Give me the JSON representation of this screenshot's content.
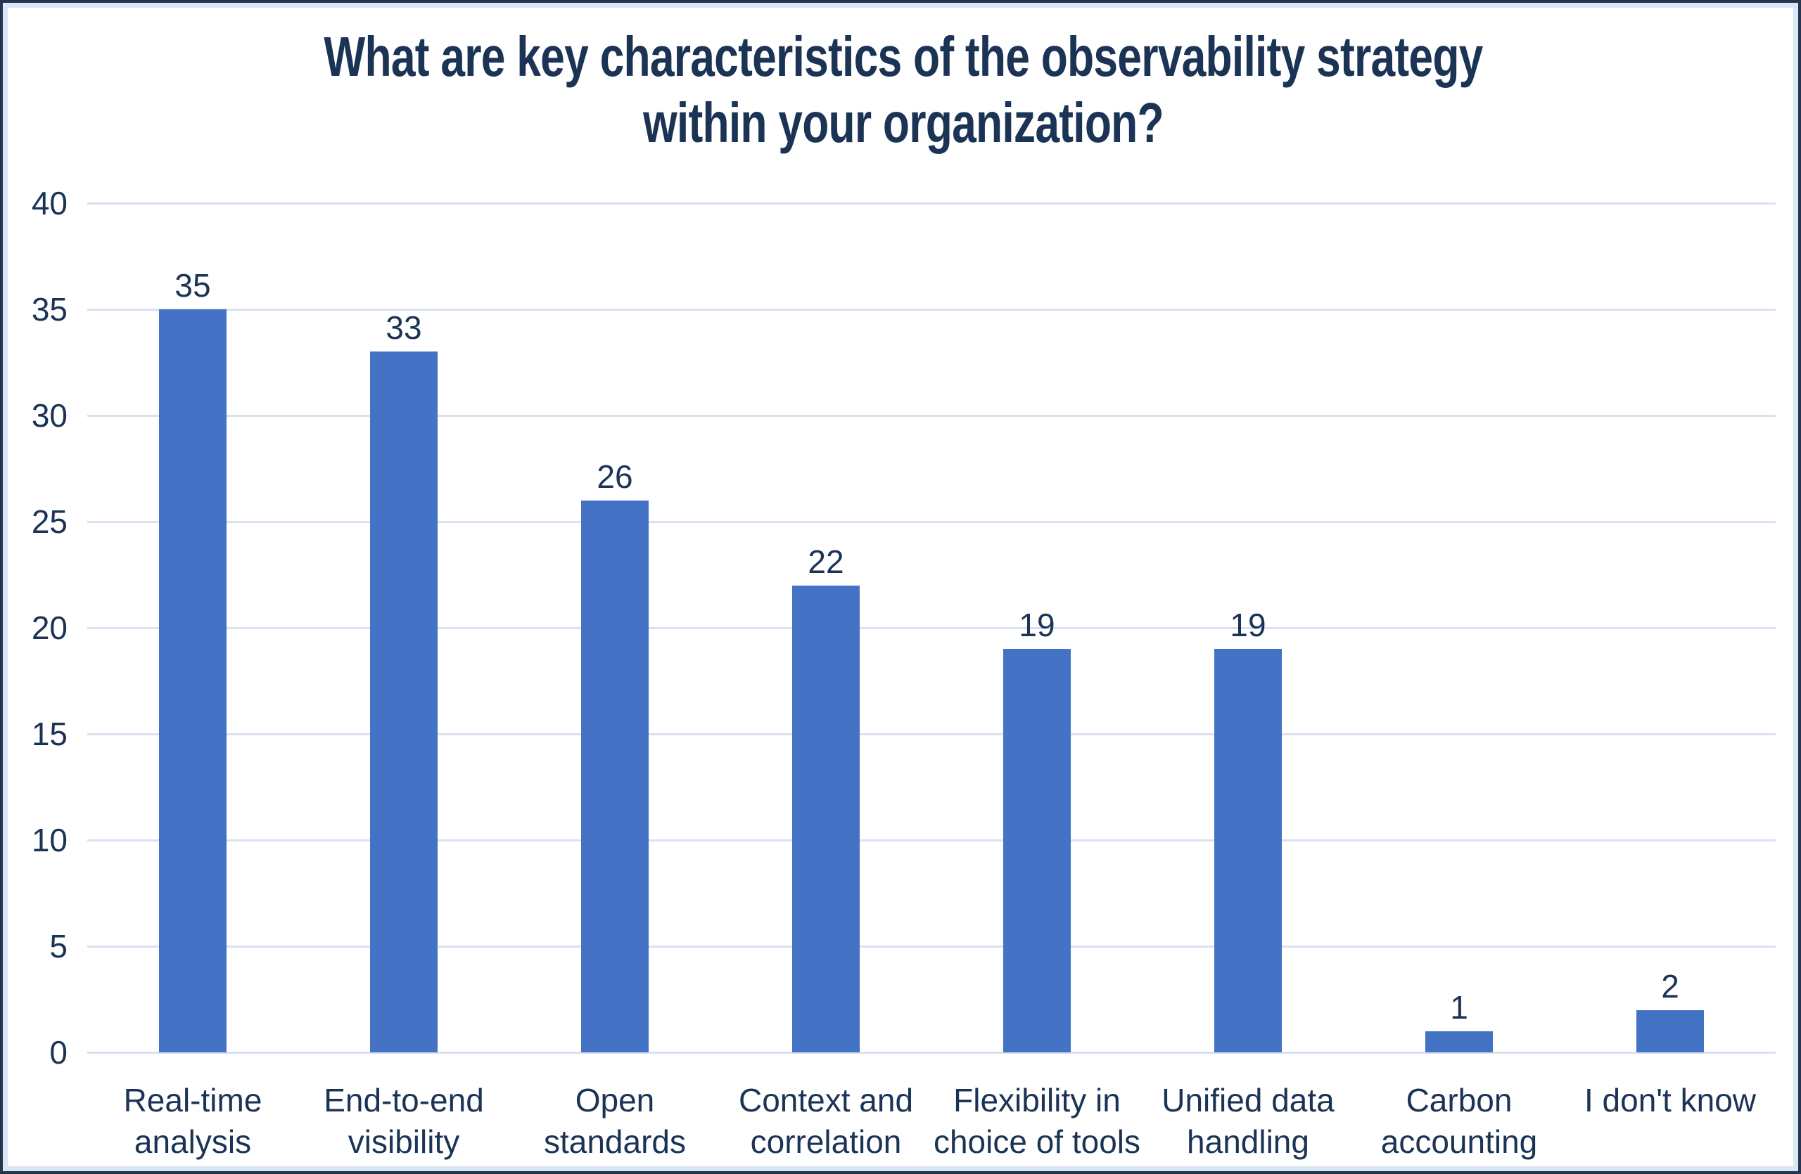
{
  "chart_data": {
    "type": "bar",
    "title": "What are key characteristics of the observability strategy within your organization?",
    "title_lines": [
      "What are key characteristics of the observability strategy",
      "within your organization?"
    ],
    "categories": [
      [
        "Real-time",
        "analysis"
      ],
      [
        "End-to-end",
        "visibility"
      ],
      [
        "Open",
        "standards"
      ],
      [
        "Context and",
        "correlation"
      ],
      [
        "Flexibility in",
        "choice of tools"
      ],
      [
        "Unified data",
        "handling"
      ],
      [
        "Carbon",
        "accounting"
      ],
      [
        "I don't know"
      ]
    ],
    "values": [
      35,
      33,
      26,
      22,
      19,
      19,
      1,
      2
    ],
    "value_labels": true,
    "xlabel": "",
    "ylabel": "",
    "ylim": [
      0,
      40
    ],
    "yticks": [
      0,
      5,
      10,
      15,
      20,
      25,
      30,
      35,
      40
    ],
    "grid": "horizontal",
    "legend": "none",
    "bar_color": "#4472c4",
    "gridline_color": "#d9e2f1",
    "text_color": "#1b3355",
    "border_colors": {
      "outer": "#24364f",
      "inner": "#dbe6f4"
    }
  }
}
